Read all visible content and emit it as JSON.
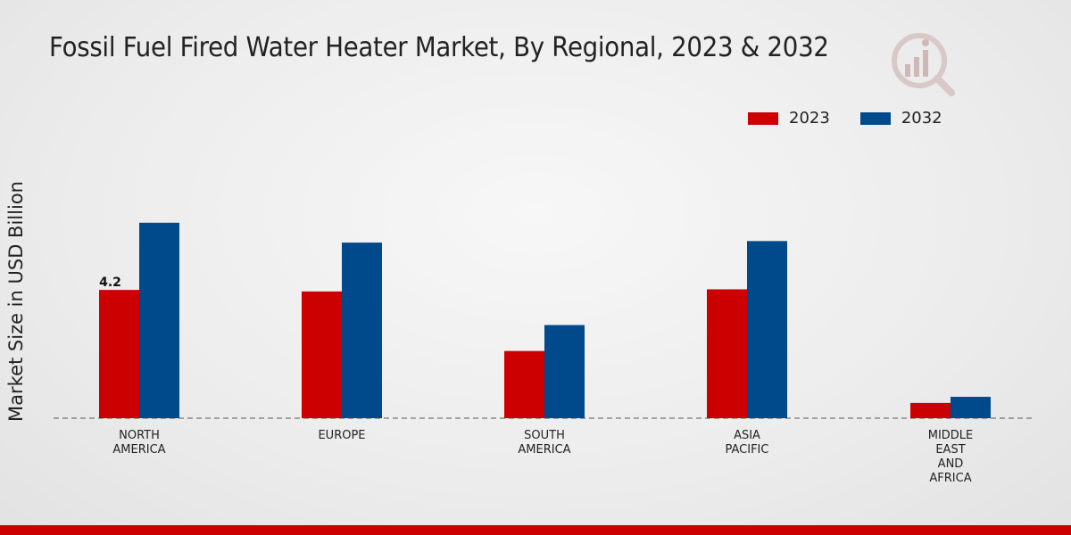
{
  "chart_data": {
    "type": "bar",
    "title": "Fossil Fuel Fired Water Heater Market, By Regional, 2023 & 2032",
    "xlabel": "",
    "ylabel": "Market Size in USD Billion",
    "categories": [
      [
        "NORTH",
        "AMERICA"
      ],
      [
        "EUROPE"
      ],
      [
        "SOUTH",
        "AMERICA"
      ],
      [
        "ASIA",
        "PACIFIC"
      ],
      [
        "MIDDLE",
        "EAST",
        "AND",
        "AFRICA"
      ]
    ],
    "series": [
      {
        "name": "2023",
        "color": "#cc0000",
        "values": [
          4.2,
          4.15,
          2.2,
          4.22,
          0.5
        ]
      },
      {
        "name": "2032",
        "color": "#004a8c",
        "values": [
          6.4,
          5.75,
          3.05,
          5.8,
          0.7
        ]
      }
    ],
    "data_labels": [
      {
        "series": 0,
        "index": 0,
        "text": "4.2"
      }
    ],
    "ylim": [
      0,
      8
    ],
    "grid": false,
    "legend": "top-right"
  }
}
